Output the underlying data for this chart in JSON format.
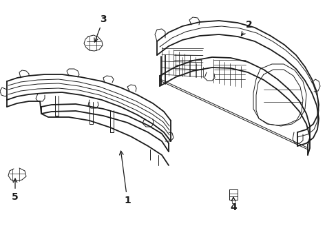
{
  "background_color": "#ffffff",
  "line_color": "#1a1a1a",
  "lw_main": 1.3,
  "lw_thin": 0.7,
  "lw_detail": 0.5,
  "figure_width": 4.89,
  "figure_height": 3.6,
  "dpi": 100
}
